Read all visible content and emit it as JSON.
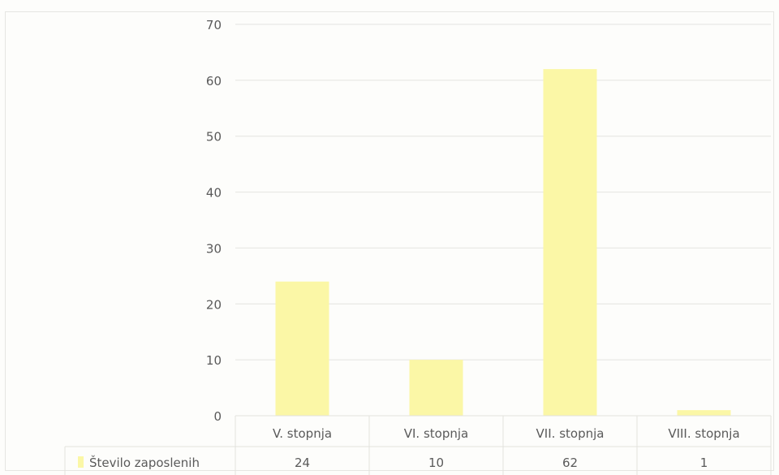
{
  "chart_data": {
    "type": "bar",
    "categories": [
      "V. stopnja",
      "VI. stopnja",
      "VII. stopnja",
      "VIII. stopnja"
    ],
    "series": [
      {
        "name": "Število zaposlenih",
        "values": [
          24,
          10,
          62,
          1
        ]
      }
    ],
    "ylim": [
      0,
      70
    ],
    "yticks": [
      0,
      10,
      20,
      30,
      40,
      50,
      60,
      70
    ],
    "grid": true,
    "legend": "data-table-bottom",
    "data_table": true,
    "bar_color": "#fbf7a6",
    "title": "",
    "xlabel": "",
    "ylabel": ""
  }
}
